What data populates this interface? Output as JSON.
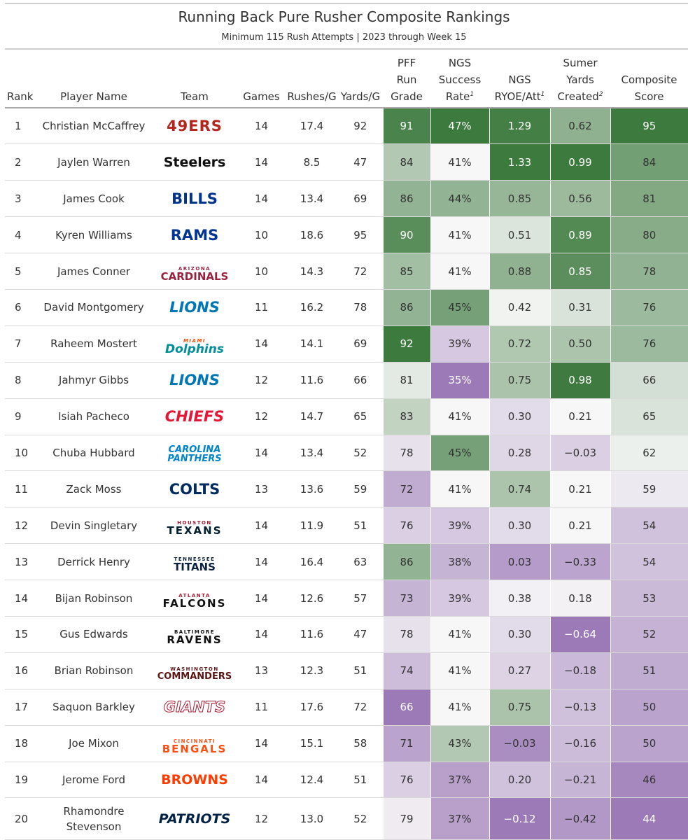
{
  "title": "Running Back Pure Rusher Composite Rankings",
  "subtitle": "Minimum 115 Rush Attempts | 2023 through Week 15",
  "chart_data": {
    "type": "table",
    "columns": [
      {
        "key": "rank",
        "label": [
          "Rank"
        ]
      },
      {
        "key": "player",
        "label": [
          "Player Name"
        ]
      },
      {
        "key": "team",
        "label": [
          "Team"
        ]
      },
      {
        "key": "games",
        "label": [
          "Games"
        ]
      },
      {
        "key": "rushes_g",
        "label": [
          "Rushes/G"
        ]
      },
      {
        "key": "yards_g",
        "label": [
          "Yards/G"
        ]
      },
      {
        "key": "pff",
        "label": [
          "PFF",
          "Run",
          "Grade"
        ]
      },
      {
        "key": "ngs_sr",
        "label": [
          "NGS",
          "Success",
          "Rate"
        ],
        "footnote": "1"
      },
      {
        "key": "ryoe",
        "label": [
          "NGS",
          "RYOE/Att"
        ],
        "footnote": "1"
      },
      {
        "key": "syc",
        "label": [
          "Sumer",
          "Yards",
          "Created"
        ],
        "footnote": "2"
      },
      {
        "key": "comp",
        "label": [
          "Composite",
          "Score"
        ]
      }
    ],
    "rows": [
      {
        "rank": "1",
        "player": "Christian McCaffrey",
        "team": "49ERS",
        "games": "14",
        "rushes_g": "17.4",
        "yards_g": "92",
        "pff": 91,
        "ngs_sr": "47%",
        "ryoe": "1.29",
        "syc": "0.62",
        "comp": 95
      },
      {
        "rank": "2",
        "player": "Jaylen Warren",
        "team": "Steelers",
        "games": "14",
        "rushes_g": "8.5",
        "yards_g": "47",
        "pff": 84,
        "ngs_sr": "41%",
        "ryoe": "1.33",
        "syc": "0.99",
        "comp": 84
      },
      {
        "rank": "3",
        "player": "James Cook",
        "team": "BILLS",
        "games": "14",
        "rushes_g": "13.4",
        "yards_g": "69",
        "pff": 86,
        "ngs_sr": "44%",
        "ryoe": "0.85",
        "syc": "0.56",
        "comp": 81
      },
      {
        "rank": "4",
        "player": "Kyren Williams",
        "team": "RAMS",
        "games": "10",
        "rushes_g": "18.6",
        "yards_g": "95",
        "pff": 90,
        "ngs_sr": "41%",
        "ryoe": "0.51",
        "syc": "0.89",
        "comp": 80
      },
      {
        "rank": "5",
        "player": "James Conner",
        "team": "ARIZONA CARDINALS",
        "games": "10",
        "rushes_g": "14.3",
        "yards_g": "72",
        "pff": 85,
        "ngs_sr": "41%",
        "ryoe": "0.88",
        "syc": "0.85",
        "comp": 78
      },
      {
        "rank": "6",
        "player": "David Montgomery",
        "team": "LIONS",
        "games": "11",
        "rushes_g": "16.2",
        "yards_g": "78",
        "pff": 86,
        "ngs_sr": "45%",
        "ryoe": "0.42",
        "syc": "0.31",
        "comp": 76
      },
      {
        "rank": "7",
        "player": "Raheem Mostert",
        "team": "MIAMI Dolphins",
        "games": "14",
        "rushes_g": "14.1",
        "yards_g": "69",
        "pff": 92,
        "ngs_sr": "39%",
        "ryoe": "0.72",
        "syc": "0.50",
        "comp": 76
      },
      {
        "rank": "8",
        "player": "Jahmyr Gibbs",
        "team": "LIONS",
        "games": "12",
        "rushes_g": "11.6",
        "yards_g": "66",
        "pff": 81,
        "ngs_sr": "35%",
        "ryoe": "0.75",
        "syc": "0.98",
        "comp": 66
      },
      {
        "rank": "9",
        "player": "Isiah Pacheco",
        "team": "CHIEFS",
        "games": "12",
        "rushes_g": "14.7",
        "yards_g": "65",
        "pff": 83,
        "ngs_sr": "41%",
        "ryoe": "0.30",
        "syc": "0.21",
        "comp": 65
      },
      {
        "rank": "10",
        "player": "Chuba Hubbard",
        "team": "CAROLINA PANTHERS",
        "games": "14",
        "rushes_g": "13.4",
        "yards_g": "52",
        "pff": 78,
        "ngs_sr": "45%",
        "ryoe": "0.28",
        "syc": "−0.03",
        "comp": 62
      },
      {
        "rank": "11",
        "player": "Zack Moss",
        "team": "COLTS",
        "games": "13",
        "rushes_g": "13.6",
        "yards_g": "59",
        "pff": 72,
        "ngs_sr": "41%",
        "ryoe": "0.74",
        "syc": "0.21",
        "comp": 59
      },
      {
        "rank": "12",
        "player": "Devin Singletary",
        "team": "HOUSTON TEXANS",
        "games": "14",
        "rushes_g": "11.9",
        "yards_g": "51",
        "pff": 76,
        "ngs_sr": "39%",
        "ryoe": "0.30",
        "syc": "0.21",
        "comp": 54
      },
      {
        "rank": "13",
        "player": "Derrick Henry",
        "team": "TENNESSEE TITANS",
        "games": "14",
        "rushes_g": "16.4",
        "yards_g": "63",
        "pff": 86,
        "ngs_sr": "38%",
        "ryoe": "0.03",
        "syc": "−0.33",
        "comp": 54
      },
      {
        "rank": "14",
        "player": "Bijan Robinson",
        "team": "ATLANTA FALCONS",
        "games": "14",
        "rushes_g": "12.6",
        "yards_g": "57",
        "pff": 73,
        "ngs_sr": "39%",
        "ryoe": "0.38",
        "syc": "0.18",
        "comp": 53
      },
      {
        "rank": "15",
        "player": "Gus Edwards",
        "team": "BALTIMORE RAVENS",
        "games": "14",
        "rushes_g": "11.6",
        "yards_g": "47",
        "pff": 78,
        "ngs_sr": "41%",
        "ryoe": "0.30",
        "syc": "−0.64",
        "comp": 52
      },
      {
        "rank": "16",
        "player": "Brian Robinson",
        "team": "WASHINGTON COMMANDERS",
        "games": "13",
        "rushes_g": "12.3",
        "yards_g": "51",
        "pff": 74,
        "ngs_sr": "41%",
        "ryoe": "0.27",
        "syc": "−0.18",
        "comp": 51
      },
      {
        "rank": "17",
        "player": "Saquon Barkley",
        "team": "GIANTS",
        "games": "11",
        "rushes_g": "17.6",
        "yards_g": "72",
        "pff": 66,
        "ngs_sr": "41%",
        "ryoe": "0.75",
        "syc": "−0.13",
        "comp": 50
      },
      {
        "rank": "18",
        "player": "Joe Mixon",
        "team": "CINCINNATI BENGALS",
        "games": "14",
        "rushes_g": "15.1",
        "yards_g": "58",
        "pff": 71,
        "ngs_sr": "43%",
        "ryoe": "−0.03",
        "syc": "−0.16",
        "comp": 50
      },
      {
        "rank": "19",
        "player": "Jerome Ford",
        "team": "BROWNS",
        "games": "14",
        "rushes_g": "12.4",
        "yards_g": "51",
        "pff": 76,
        "ngs_sr": "37%",
        "ryoe": "0.20",
        "syc": "−0.21",
        "comp": 46
      },
      {
        "rank": "20",
        "player": "Rhamondre Stevenson",
        "team": "PATRIOTS",
        "games": "12",
        "rushes_g": "13.0",
        "yards_g": "52",
        "pff": 79,
        "ngs_sr": "37%",
        "ryoe": "−0.12",
        "syc": "−0.42",
        "comp": 44
      }
    ]
  },
  "team_logos": {
    "49ERS": {
      "color": "#b3261e"
    },
    "Steelers": {
      "color": "#101010"
    },
    "BILLS": {
      "color": "#00338d"
    },
    "RAMS": {
      "color": "#003594"
    },
    "ARIZONA CARDINALS": {
      "color": "#97233f"
    },
    "LIONS": {
      "color": "#0076b6"
    },
    "MIAMI Dolphins": {
      "color": "#008e97",
      "accent": "#fc4c02"
    },
    "CHIEFS": {
      "color": "#e31837"
    },
    "CAROLINA PANTHERS": {
      "color": "#0085ca"
    },
    "COLTS": {
      "color": "#002c5f"
    },
    "HOUSTON TEXANS": {
      "color": "#03202f",
      "accent": "#a71930"
    },
    "TENNESSEE TITANS": {
      "color": "#0c2340"
    },
    "ATLANTA FALCONS": {
      "color": "#101010",
      "accent": "#a71930"
    },
    "BALTIMORE RAVENS": {
      "color": "#101010"
    },
    "WASHINGTON COMMANDERS": {
      "color": "#5a1414"
    },
    "GIANTS": {
      "color": "#a71930"
    },
    "CINCINNATI BENGALS": {
      "color": "#fb4f14"
    },
    "BROWNS": {
      "color": "#ff3c00"
    },
    "PATRIOTS": {
      "color": "#002244"
    }
  },
  "colors": {
    "high": "#3d7a3e",
    "mid": "#f7f7f7",
    "low": "#9c7ab8"
  }
}
